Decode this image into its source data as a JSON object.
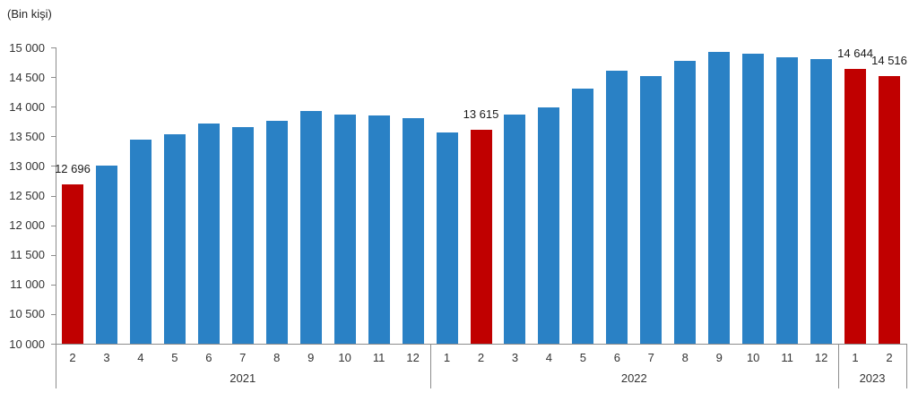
{
  "chart_data": {
    "type": "bar",
    "title": "(Bin kişi)",
    "xlabel": "",
    "ylabel": "",
    "ylim": [
      10000,
      15000
    ],
    "ytick_step": 500,
    "ytick_labels": [
      "15 000",
      "14 500",
      "14 000",
      "13 500",
      "13 000",
      "12 500",
      "12 000",
      "11 500",
      "11 000",
      "10 500",
      "10 000"
    ],
    "grid": false,
    "legend": null,
    "colors": {
      "bar_blue": "#2a81c5",
      "bar_red": "#c00000",
      "axis": "#8c8c8c",
      "text": "#333333"
    },
    "bars": [
      {
        "year": "2021",
        "month": "2",
        "value": 12696,
        "color": "red",
        "label": "12 696"
      },
      {
        "year": "2021",
        "month": "3",
        "value": 13000,
        "color": "blue"
      },
      {
        "year": "2021",
        "month": "4",
        "value": 13440,
        "color": "blue"
      },
      {
        "year": "2021",
        "month": "5",
        "value": 13530,
        "color": "blue"
      },
      {
        "year": "2021",
        "month": "6",
        "value": 13720,
        "color": "blue"
      },
      {
        "year": "2021",
        "month": "7",
        "value": 13650,
        "color": "blue"
      },
      {
        "year": "2021",
        "month": "8",
        "value": 13760,
        "color": "blue"
      },
      {
        "year": "2021",
        "month": "9",
        "value": 13920,
        "color": "blue"
      },
      {
        "year": "2021",
        "month": "10",
        "value": 13870,
        "color": "blue"
      },
      {
        "year": "2021",
        "month": "11",
        "value": 13850,
        "color": "blue"
      },
      {
        "year": "2021",
        "month": "12",
        "value": 13800,
        "color": "blue"
      },
      {
        "year": "2022",
        "month": "1",
        "value": 13560,
        "color": "blue"
      },
      {
        "year": "2022",
        "month": "2",
        "value": 13615,
        "color": "red",
        "label": "13 615"
      },
      {
        "year": "2022",
        "month": "3",
        "value": 13860,
        "color": "blue"
      },
      {
        "year": "2022",
        "month": "4",
        "value": 13990,
        "color": "blue"
      },
      {
        "year": "2022",
        "month": "5",
        "value": 14300,
        "color": "blue"
      },
      {
        "year": "2022",
        "month": "6",
        "value": 14600,
        "color": "blue"
      },
      {
        "year": "2022",
        "month": "7",
        "value": 14520,
        "color": "blue"
      },
      {
        "year": "2022",
        "month": "8",
        "value": 14780,
        "color": "blue"
      },
      {
        "year": "2022",
        "month": "9",
        "value": 14930,
        "color": "blue"
      },
      {
        "year": "2022",
        "month": "10",
        "value": 14890,
        "color": "blue"
      },
      {
        "year": "2022",
        "month": "11",
        "value": 14830,
        "color": "blue"
      },
      {
        "year": "2022",
        "month": "12",
        "value": 14800,
        "color": "blue"
      },
      {
        "year": "2023",
        "month": "1",
        "value": 14644,
        "color": "red",
        "label": "14 644"
      },
      {
        "year": "2023",
        "month": "2",
        "value": 14516,
        "color": "red",
        "label": "14 516"
      }
    ]
  }
}
